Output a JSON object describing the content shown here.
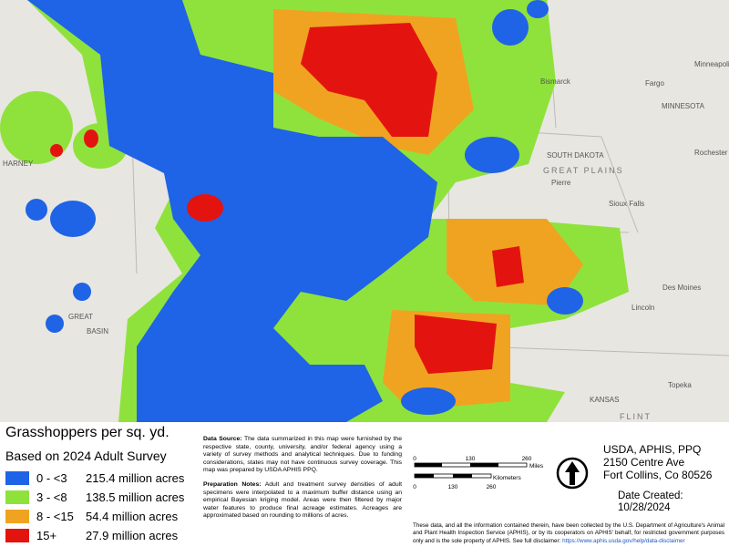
{
  "map_labels": {
    "places": [
      "Bismarck",
      "Fargo",
      "MINNESOTA",
      "Minneapolis",
      "Rochester",
      "SOUTH DAKOTA",
      "Pierre",
      "Sioux Falls",
      "Des Moines",
      "Lincoln",
      "Topeka",
      "KANSAS",
      "HARNEY",
      "GREAT",
      "BASIN"
    ],
    "regions": [
      "GREAT PLAINS",
      "FLINT"
    ]
  },
  "legend": {
    "title": "Grasshoppers per sq. yd.",
    "subtitle": "Based on 2024 Adult Survey",
    "items": [
      {
        "label": "0 - <3",
        "acres": "215.4 million acres",
        "color": "#1f63e6"
      },
      {
        "label": "3 - <8",
        "acres": "138.5 million acres",
        "color": "#8fe23c"
      },
      {
        "label": "8 - <15",
        "acres": "54.4 million acres",
        "color": "#f0a321"
      },
      {
        "label": "15+",
        "acres": "27.9 million acres",
        "color": "#e3140f"
      }
    ]
  },
  "notes": {
    "data_source": {
      "label": "Data Source:",
      "text": "The data summarized in this map were furnished by the respective state, county, university, and/or federal agency using a variety of survey methods and analytical techniques. Due to funding considerations, states may not have continuous survey coverage. This map was prepared by USDA APHIS PPQ."
    },
    "preparation": {
      "label": "Preparation Notes:",
      "text": "Adult and treatment survey densities of adult specimens were interpolated to a maximum buffer distance using an empirical Bayesian kriging model. Areas were then filtered by major water features to produce final acreage estimates. Acreages are approximated based on rounding to millions of acres."
    }
  },
  "scale": {
    "miles": [
      "0",
      "130",
      "260"
    ],
    "miles_unit": "Miles",
    "km": [
      "0",
      "130",
      "260"
    ],
    "km_unit": "Kilometers"
  },
  "address": [
    "USDA, APHIS, PPQ",
    "2150 Centre Ave",
    "Fort Collins, Co 80526"
  ],
  "date": {
    "label": "Date Created:",
    "value": "10/28/2024"
  },
  "disclaimer": {
    "text": "These data, and all the information contained therein, have been collected by the U.S. Department of Agriculture's Animal and Plant Health Inspection Service (APHIS), or by its cooperators on APHIS' behalf, for restricted government purposes only and is the sole property of APHIS. See full disclaimer:",
    "url": "https://www.aphis.usda.gov/help/data-disclaimer"
  }
}
